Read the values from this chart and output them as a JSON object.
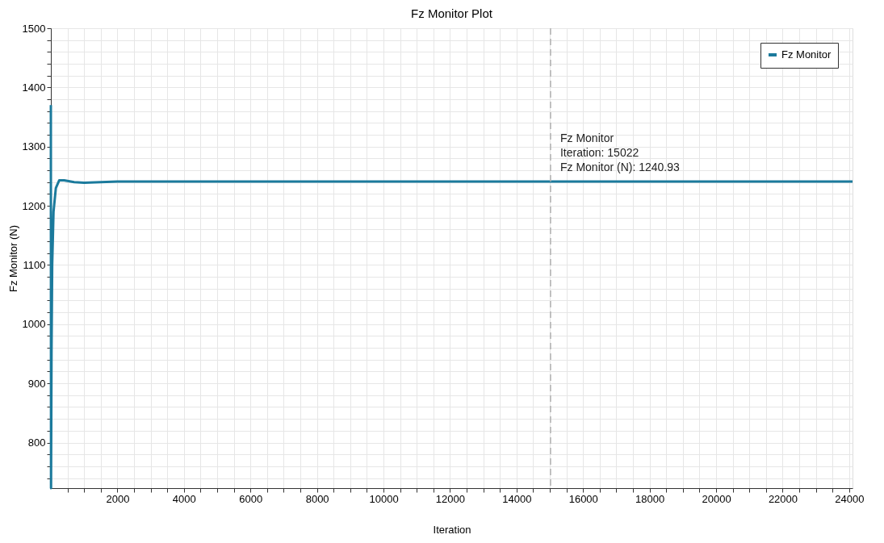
{
  "chart_data": {
    "type": "line",
    "title": "Fz Monitor Plot",
    "xlabel": "Iteration",
    "ylabel": "Fz Monitor (N)",
    "x": [
      0,
      5,
      20,
      40,
      80,
      150,
      250,
      400,
      700,
      1000,
      1500,
      2000,
      5000,
      10000,
      15022,
      20000,
      24100
    ],
    "series": [
      {
        "name": "Fz Monitor",
        "color": "#1b7a9c",
        "values": [
          1370,
          723,
          950,
          1100,
          1190,
          1230,
          1243,
          1243,
          1240,
          1239,
          1240,
          1241,
          1241,
          1241,
          1240.93,
          1241,
          1241
        ]
      }
    ],
    "xlim": [
      0,
      24100
    ],
    "ylim": [
      723,
      1500
    ],
    "xticks": [
      {
        "value": 500,
        "label": null
      },
      {
        "value": 1000,
        "label": null
      },
      {
        "value": 1500,
        "label": null
      },
      2000,
      {
        "value": 2500,
        "label": null
      },
      {
        "value": 3000,
        "label": null
      },
      {
        "value": 3500,
        "label": null
      },
      4000,
      {
        "value": 4500,
        "label": null
      },
      {
        "value": 5000,
        "label": null
      },
      {
        "value": 5500,
        "label": null
      },
      6000,
      {
        "value": 6500,
        "label": null
      },
      {
        "value": 7000,
        "label": null
      },
      {
        "value": 7500,
        "label": null
      },
      8000,
      {
        "value": 8500,
        "label": null
      },
      {
        "value": 9000,
        "label": null
      },
      {
        "value": 9500,
        "label": null
      },
      10000,
      {
        "value": 10500,
        "label": null
      },
      {
        "value": 11000,
        "label": null
      },
      {
        "value": 11500,
        "label": null
      },
      12000,
      {
        "value": 12500,
        "label": null
      },
      {
        "value": 13000,
        "label": null
      },
      {
        "value": 13500,
        "label": null
      },
      14000,
      {
        "value": 14500,
        "label": null
      },
      {
        "value": 15000,
        "label": null
      },
      {
        "value": 15500,
        "label": null
      },
      16000,
      {
        "value": 16500,
        "label": null
      },
      {
        "value": 17000,
        "label": null
      },
      {
        "value": 17500,
        "label": null
      },
      18000,
      {
        "value": 18500,
        "label": null
      },
      {
        "value": 19000,
        "label": null
      },
      {
        "value": 19500,
        "label": null
      },
      20000,
      {
        "value": 20500,
        "label": null
      },
      {
        "value": 21000,
        "label": null
      },
      {
        "value": 21500,
        "label": null
      },
      22000,
      {
        "value": 22500,
        "label": null
      },
      {
        "value": 23000,
        "label": null
      },
      {
        "value": 23500,
        "label": null
      },
      24000
    ],
    "yticks": [
      {
        "value": 740,
        "label": null
      },
      {
        "value": 760,
        "label": null
      },
      {
        "value": 780,
        "label": null
      },
      800,
      {
        "value": 820,
        "label": null
      },
      {
        "value": 840,
        "label": null
      },
      {
        "value": 860,
        "label": null
      },
      {
        "value": 880,
        "label": null
      },
      900,
      {
        "value": 920,
        "label": null
      },
      {
        "value": 940,
        "label": null
      },
      {
        "value": 960,
        "label": null
      },
      {
        "value": 980,
        "label": null
      },
      1000,
      {
        "value": 1020,
        "label": null
      },
      {
        "value": 1040,
        "label": null
      },
      {
        "value": 1060,
        "label": null
      },
      {
        "value": 1080,
        "label": null
      },
      1100,
      {
        "value": 1120,
        "label": null
      },
      {
        "value": 1140,
        "label": null
      },
      {
        "value": 1160,
        "label": null
      },
      {
        "value": 1180,
        "label": null
      },
      1200,
      {
        "value": 1220,
        "label": null
      },
      {
        "value": 1240,
        "label": null
      },
      {
        "value": 1260,
        "label": null
      },
      {
        "value": 1280,
        "label": null
      },
      1300,
      {
        "value": 1320,
        "label": null
      },
      {
        "value": 1340,
        "label": null
      },
      {
        "value": 1360,
        "label": null
      },
      {
        "value": 1380,
        "label": null
      },
      1400,
      {
        "value": 1420,
        "label": null
      },
      {
        "value": 1440,
        "label": null
      },
      {
        "value": 1460,
        "label": null
      },
      {
        "value": 1480,
        "label": null
      },
      1500
    ],
    "ref_lines": [
      {
        "axis": "x",
        "value": 15022,
        "color": "#b0b0b0",
        "line_style": "dashed"
      }
    ],
    "annotations": [
      {
        "text": "Fz Monitor\n\nIteration: 15022\nFz Monitor (N): 1240.93",
        "x": 15022,
        "y": 1240.93
      }
    ],
    "grid": true,
    "legend": "top right",
    "marker": "none",
    "line_style": "solid"
  }
}
